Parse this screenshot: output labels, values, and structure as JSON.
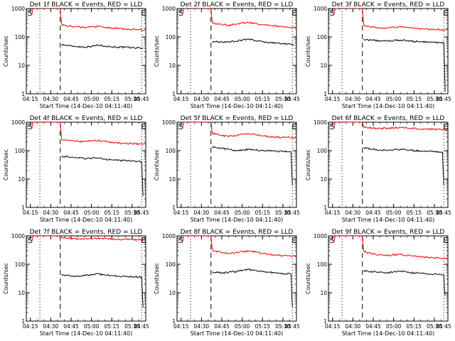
{
  "page": {
    "start_time_label": "Start Time (14-Dec-10 04:11:40)",
    "y_axis_label": "Counts/sec",
    "x_tick_labels": [
      "04:15",
      "04:30",
      "04:45",
      "05:00",
      "05:15",
      "05:30",
      "05:45"
    ],
    "y_tick_labels": [
      "1",
      "10",
      "100",
      "1000"
    ],
    "marker_start": "S",
    "marker_end": "E",
    "colors": {
      "events": "#000000",
      "lld": "#ff0000",
      "axes": "#000000"
    }
  },
  "chart_data": [
    {
      "type": "line",
      "title": "Det 1f BLACK = Events, RED = LLD",
      "ylog": true,
      "ylim": [
        1,
        1000
      ],
      "x_unit": "minutes",
      "xlim": [
        12,
        100
      ],
      "dotted_lines_x": [
        22,
        97
      ],
      "dashed_line_x": 37,
      "series": [
        {
          "name": "Events",
          "x": [
            38,
            40,
            45,
            50,
            55,
            60,
            65,
            70,
            75,
            80,
            85,
            90,
            95,
            98
          ],
          "y": [
            55,
            52,
            48,
            46,
            44,
            47,
            52,
            48,
            45,
            44,
            43,
            42,
            41,
            40
          ]
        },
        {
          "name": "LLD",
          "x": [
            16,
            17,
            22,
            26,
            30,
            34,
            37,
            38,
            40,
            45,
            50,
            55,
            60,
            65,
            70,
            75,
            80,
            85,
            90,
            95,
            100
          ],
          "y": [
            600,
            1000,
            1000,
            1000,
            1000,
            1000,
            1000,
            280,
            255,
            235,
            225,
            215,
            230,
            235,
            215,
            205,
            200,
            190,
            185,
            180,
            178
          ]
        }
      ]
    },
    {
      "type": "line",
      "title": "Det 2f BLACK = Events, RED = LLD",
      "ylog": true,
      "ylim": [
        1,
        1000
      ],
      "x_unit": "minutes",
      "xlim": [
        12,
        100
      ],
      "dotted_lines_x": [
        22,
        97
      ],
      "dashed_line_x": 37,
      "series": [
        {
          "name": "Events",
          "x": [
            38,
            40,
            45,
            50,
            55,
            60,
            65,
            70,
            75,
            80,
            85,
            90,
            95,
            98
          ],
          "y": [
            70,
            68,
            66,
            67,
            70,
            78,
            82,
            75,
            68,
            64,
            60,
            58,
            56,
            55
          ]
        },
        {
          "name": "LLD",
          "x": [
            16,
            17,
            22,
            26,
            30,
            34,
            37,
            38,
            40,
            45,
            50,
            55,
            60,
            65,
            70,
            75,
            80,
            85,
            90,
            95,
            100
          ],
          "y": [
            600,
            1000,
            1000,
            1000,
            1000,
            1000,
            1000,
            330,
            300,
            270,
            260,
            280,
            310,
            320,
            300,
            270,
            250,
            240,
            230,
            220,
            215
          ]
        }
      ]
    },
    {
      "type": "line",
      "title": "Det 3f BLACK = Events, RED = LLD",
      "ylog": true,
      "ylim": [
        1,
        1000
      ],
      "x_unit": "minutes",
      "xlim": [
        12,
        100
      ],
      "dotted_lines_x": [
        22,
        97
      ],
      "dashed_line_x": 37,
      "series": [
        {
          "name": "Events",
          "x": [
            38,
            40,
            45,
            50,
            55,
            60,
            65,
            70,
            75,
            80,
            85,
            90,
            95,
            97,
            97.5,
            98
          ],
          "y": [
            85,
            80,
            76,
            74,
            72,
            75,
            78,
            74,
            70,
            68,
            66,
            64,
            63,
            62,
            10,
            1.2
          ]
        },
        {
          "name": "LLD",
          "x": [
            16,
            17,
            22,
            26,
            30,
            34,
            37,
            38,
            40,
            45,
            50,
            55,
            60,
            65,
            70,
            75,
            80,
            85,
            90,
            95,
            100
          ],
          "y": [
            600,
            1000,
            1000,
            1000,
            1000,
            1000,
            1000,
            270,
            240,
            220,
            210,
            205,
            220,
            230,
            215,
            200,
            195,
            190,
            185,
            180,
            178
          ]
        }
      ]
    },
    {
      "type": "line",
      "title": "Det 4f BLACK = Events, RED = LLD",
      "ylog": true,
      "ylim": [
        1,
        1000
      ],
      "x_unit": "minutes",
      "xlim": [
        12,
        100
      ],
      "dotted_lines_x": [
        22,
        97
      ],
      "dashed_line_x": 37,
      "series": [
        {
          "name": "Events",
          "x": [
            38,
            40,
            45,
            50,
            55,
            60,
            65,
            70,
            75,
            80,
            85,
            90,
            95,
            97,
            97.5,
            98
          ],
          "y": [
            65,
            62,
            58,
            55,
            53,
            55,
            55,
            50,
            48,
            46,
            45,
            44,
            42,
            40,
            10,
            2.5
          ]
        },
        {
          "name": "LLD",
          "x": [
            16,
            17,
            22,
            26,
            30,
            34,
            37,
            38,
            40,
            45,
            50,
            55,
            60,
            65,
            70,
            75,
            80,
            85,
            90,
            95,
            100
          ],
          "y": [
            600,
            1000,
            1000,
            1000,
            1000,
            1000,
            1000,
            260,
            240,
            225,
            215,
            205,
            220,
            225,
            210,
            195,
            185,
            180,
            175,
            170,
            168
          ]
        }
      ]
    },
    {
      "type": "line",
      "title": "Det 5f BLACK = Events, RED = LLD",
      "ylog": true,
      "ylim": [
        1,
        1000
      ],
      "x_unit": "minutes",
      "xlim": [
        12,
        100
      ],
      "dotted_lines_x": [
        22,
        97
      ],
      "dashed_line_x": 37,
      "series": [
        {
          "name": "Events",
          "x": [
            38,
            40,
            45,
            50,
            55,
            60,
            65,
            70,
            75,
            80,
            85,
            90,
            95,
            96,
            96.5,
            97
          ],
          "y": [
            140,
            130,
            120,
            110,
            100,
            105,
            110,
            105,
            100,
            98,
            96,
            95,
            92,
            90,
            20,
            6
          ]
        },
        {
          "name": "LLD",
          "x": [
            16,
            17,
            22,
            26,
            30,
            34,
            37,
            38,
            40,
            45,
            50,
            55,
            60,
            65,
            70,
            75,
            80,
            85,
            90,
            95,
            100
          ],
          "y": [
            600,
            1000,
            1000,
            1000,
            1000,
            1000,
            1000,
            420,
            380,
            340,
            320,
            330,
            380,
            390,
            360,
            330,
            310,
            300,
            295,
            290,
            290
          ]
        }
      ]
    },
    {
      "type": "line",
      "title": "Det 6f BLACK = Events, RED = LLD",
      "ylog": true,
      "ylim": [
        1,
        1000
      ],
      "x_unit": "minutes",
      "xlim": [
        12,
        100
      ],
      "dotted_lines_x": [
        22,
        97
      ],
      "dashed_line_x": 37,
      "series": [
        {
          "name": "Events",
          "x": [
            38,
            40,
            45,
            50,
            55,
            60,
            65,
            70,
            75,
            80,
            85,
            90,
            95,
            96,
            96.5,
            97
          ],
          "y": [
            130,
            122,
            112,
            105,
            100,
            108,
            112,
            105,
            100,
            97,
            94,
            92,
            90,
            88,
            20,
            6
          ]
        },
        {
          "name": "LLD",
          "x": [
            16,
            17,
            22,
            26,
            30,
            34,
            37,
            38,
            40,
            45,
            50,
            55,
            60,
            65,
            70,
            75,
            80,
            85,
            90,
            95,
            100
          ],
          "y": [
            600,
            1000,
            1000,
            1000,
            1000,
            1000,
            1000,
            700,
            660,
            620,
            600,
            610,
            640,
            650,
            620,
            600,
            580,
            570,
            560,
            550,
            540
          ]
        }
      ]
    },
    {
      "type": "line",
      "title": "Det 7f BLACK = Events, RED = LLD",
      "ylog": true,
      "ylim": [
        1,
        1000
      ],
      "x_unit": "minutes",
      "xlim": [
        12,
        100
      ],
      "dotted_lines_x": [
        22,
        97
      ],
      "dashed_line_x": 37,
      "series": [
        {
          "name": "Events",
          "x": [
            38,
            40,
            45,
            50,
            55,
            60,
            65,
            70,
            75,
            80,
            85,
            90,
            95,
            97,
            97.5,
            98
          ],
          "y": [
            45,
            42,
            38,
            38,
            40,
            44,
            46,
            42,
            40,
            38,
            37,
            36,
            36,
            35,
            10,
            3
          ]
        },
        {
          "name": "LLD",
          "x": [
            16,
            17,
            22,
            26,
            30,
            34,
            37,
            38,
            40,
            45,
            50,
            55,
            60,
            65,
            70,
            75,
            80,
            85,
            90,
            95,
            100
          ],
          "y": [
            600,
            1000,
            1000,
            1000,
            1000,
            1000,
            1000,
            900,
            850,
            800,
            780,
            790,
            820,
            830,
            800,
            780,
            760,
            750,
            740,
            730,
            720
          ]
        }
      ]
    },
    {
      "type": "line",
      "title": "Det 8f BLACK = Events, RED = LLD",
      "ylog": true,
      "ylim": [
        1,
        1000
      ],
      "x_unit": "minutes",
      "xlim": [
        12,
        100
      ],
      "dotted_lines_x": [
        22,
        97
      ],
      "dashed_line_x": 37,
      "series": [
        {
          "name": "Events",
          "x": [
            38,
            40,
            45,
            50,
            55,
            60,
            65,
            70,
            75,
            80,
            85,
            90,
            95,
            96,
            96.5,
            97
          ],
          "y": [
            55,
            52,
            50,
            52,
            55,
            62,
            65,
            60,
            55,
            52,
            50,
            48,
            46,
            45,
            10,
            3
          ]
        },
        {
          "name": "LLD",
          "x": [
            16,
            17,
            22,
            26,
            30,
            34,
            37,
            38,
            40,
            45,
            50,
            55,
            60,
            65,
            70,
            75,
            80,
            85,
            90,
            95,
            100
          ],
          "y": [
            600,
            1000,
            1000,
            1000,
            1000,
            1000,
            1000,
            330,
            290,
            260,
            240,
            250,
            280,
            290,
            270,
            240,
            220,
            210,
            205,
            200,
            195
          ]
        }
      ]
    },
    {
      "type": "line",
      "title": "Det 9f BLACK = Events, RED = LLD",
      "ylog": true,
      "ylim": [
        1,
        1000
      ],
      "x_unit": "minutes",
      "xlim": [
        12,
        100
      ],
      "dotted_lines_x": [
        22,
        97
      ],
      "dashed_line_x": 37,
      "series": [
        {
          "name": "Events",
          "x": [
            38,
            40,
            45,
            50,
            55,
            60,
            65,
            70,
            75,
            80,
            85,
            90,
            95,
            97,
            97.5,
            98
          ],
          "y": [
            60,
            58,
            55,
            52,
            50,
            55,
            58,
            52,
            50,
            48,
            46,
            45,
            43,
            42,
            12,
            8
          ]
        },
        {
          "name": "LLD",
          "x": [
            16,
            17,
            22,
            26,
            30,
            34,
            37,
            38,
            40,
            45,
            50,
            55,
            60,
            65,
            70,
            75,
            80,
            85,
            90,
            95,
            100
          ],
          "y": [
            600,
            1000,
            1000,
            1000,
            1000,
            1000,
            1000,
            300,
            260,
            230,
            210,
            205,
            215,
            220,
            205,
            190,
            180,
            175,
            170,
            165,
            160
          ]
        }
      ]
    }
  ]
}
